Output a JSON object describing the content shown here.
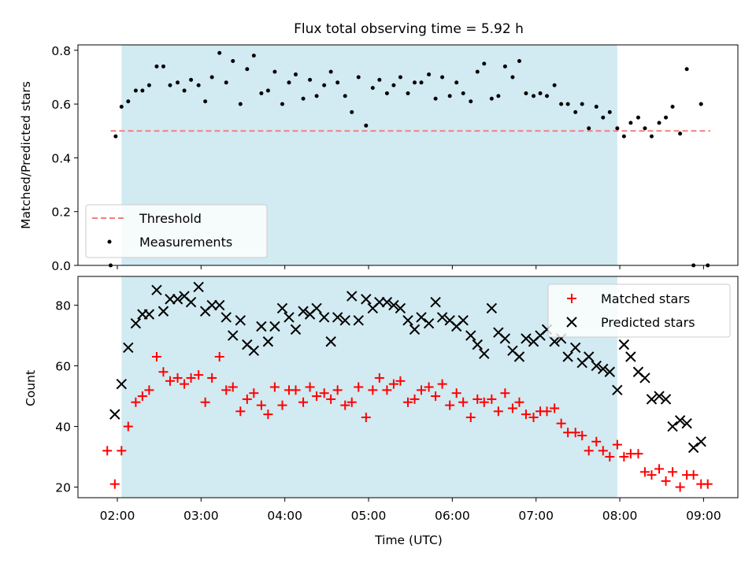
{
  "title": "Flux total observing time = 5.92 h",
  "colors": {
    "shade": "#add8e6",
    "threshold": "#f08080",
    "measurement": "#000000",
    "matched": "#ff0000",
    "predicted": "#000000"
  },
  "chart_data": [
    {
      "type": "scatter",
      "ylabel": "Matched/Predicted stars",
      "xlabel": "",
      "xlim": [
        1.53,
        9.41
      ],
      "ylim": [
        0,
        0.82
      ],
      "yticks": [
        0,
        0.2,
        0.4,
        0.6,
        0.8
      ],
      "ytick_labels": [
        "0.0",
        "0.2",
        "0.4",
        "0.6",
        "0.8"
      ],
      "shaded_region": {
        "x0": 2.05,
        "x1": 7.97
      },
      "legend_position": "lower-left",
      "threshold": {
        "name": "Threshold",
        "y": 0.5,
        "x_range": [
          1.92,
          9.08
        ]
      },
      "series": [
        {
          "name": "Measurements",
          "x": [
            1.92,
            1.98,
            2.05,
            2.13,
            2.22,
            2.3,
            2.38,
            2.47,
            2.55,
            2.63,
            2.72,
            2.8,
            2.88,
            2.97,
            3.05,
            3.13,
            3.22,
            3.3,
            3.38,
            3.47,
            3.55,
            3.63,
            3.72,
            3.8,
            3.88,
            3.97,
            4.05,
            4.13,
            4.22,
            4.3,
            4.38,
            4.47,
            4.55,
            4.63,
            4.72,
            4.8,
            4.88,
            4.97,
            5.05,
            5.13,
            5.22,
            5.3,
            5.38,
            5.47,
            5.55,
            5.63,
            5.72,
            5.8,
            5.88,
            5.97,
            6.05,
            6.13,
            6.22,
            6.3,
            6.38,
            6.47,
            6.55,
            6.63,
            6.72,
            6.8,
            6.88,
            6.97,
            7.05,
            7.13,
            7.22,
            7.3,
            7.38,
            7.47,
            7.55,
            7.63,
            7.72,
            7.8,
            7.88,
            7.97,
            8.05,
            8.13,
            8.22,
            8.3,
            8.38,
            8.47,
            8.55,
            8.63,
            8.72,
            8.8,
            8.88,
            8.97,
            9.05
          ],
          "y": [
            0.0,
            0.48,
            0.59,
            0.61,
            0.65,
            0.65,
            0.67,
            0.74,
            0.74,
            0.67,
            0.68,
            0.65,
            0.69,
            0.67,
            0.61,
            0.7,
            0.79,
            0.68,
            0.76,
            0.6,
            0.73,
            0.78,
            0.64,
            0.65,
            0.72,
            0.6,
            0.68,
            0.71,
            0.62,
            0.69,
            0.63,
            0.67,
            0.72,
            0.68,
            0.63,
            0.57,
            0.7,
            0.52,
            0.66,
            0.69,
            0.64,
            0.67,
            0.7,
            0.64,
            0.68,
            0.68,
            0.71,
            0.62,
            0.7,
            0.63,
            0.68,
            0.64,
            0.61,
            0.72,
            0.75,
            0.62,
            0.63,
            0.74,
            0.7,
            0.76,
            0.64,
            0.63,
            0.64,
            0.63,
            0.67,
            0.6,
            0.6,
            0.57,
            0.6,
            0.51,
            0.59,
            0.55,
            0.57,
            0.51,
            0.48,
            0.53,
            0.55,
            0.51,
            0.48,
            0.53,
            0.55,
            0.59,
            0.49,
            0.73,
            0.0,
            0.6,
            0.0
          ]
        }
      ]
    },
    {
      "type": "scatter",
      "ylabel": "Count",
      "xlabel": "Time (UTC)",
      "xlim": [
        1.53,
        9.41
      ],
      "ylim": [
        16.5,
        89.5
      ],
      "yticks": [
        20,
        40,
        60,
        80
      ],
      "ytick_labels": [
        "20",
        "40",
        "60",
        "80"
      ],
      "xticks": [
        2,
        3,
        4,
        5,
        6,
        7,
        8,
        9
      ],
      "xtick_labels": [
        "02:00",
        "03:00",
        "04:00",
        "05:00",
        "06:00",
        "07:00",
        "08:00",
        "09:00"
      ],
      "shaded_region": {
        "x0": 2.05,
        "x1": 7.97
      },
      "legend_position": "top-right",
      "series": [
        {
          "name": "Matched stars",
          "x": [
            1.88,
            1.97,
            2.05,
            2.13,
            2.22,
            2.3,
            2.38,
            2.47,
            2.55,
            2.63,
            2.72,
            2.8,
            2.88,
            2.97,
            3.05,
            3.13,
            3.22,
            3.3,
            3.38,
            3.47,
            3.55,
            3.63,
            3.72,
            3.8,
            3.88,
            3.97,
            4.05,
            4.13,
            4.22,
            4.3,
            4.38,
            4.47,
            4.55,
            4.63,
            4.72,
            4.8,
            4.88,
            4.97,
            5.05,
            5.13,
            5.22,
            5.3,
            5.38,
            5.47,
            5.55,
            5.63,
            5.72,
            5.8,
            5.88,
            5.97,
            6.05,
            6.13,
            6.22,
            6.3,
            6.38,
            6.47,
            6.55,
            6.63,
            6.72,
            6.8,
            6.88,
            6.97,
            7.05,
            7.13,
            7.22,
            7.3,
            7.38,
            7.47,
            7.55,
            7.63,
            7.72,
            7.8,
            7.88,
            7.97,
            8.05,
            8.13,
            8.22,
            8.3,
            8.38,
            8.47,
            8.55,
            8.63,
            8.72,
            8.8,
            8.88,
            8.97,
            9.05
          ],
          "y": [
            32,
            21,
            32,
            40,
            48,
            50,
            52,
            63,
            58,
            55,
            56,
            54,
            56,
            57,
            48,
            56,
            63,
            52,
            53,
            45,
            49,
            51,
            47,
            44,
            53,
            47,
            52,
            52,
            48,
            53,
            50,
            51,
            49,
            52,
            47,
            48,
            53,
            43,
            52,
            56,
            52,
            54,
            55,
            48,
            49,
            52,
            53,
            50,
            54,
            47,
            51,
            48,
            43,
            49,
            48,
            49,
            45,
            51,
            46,
            48,
            44,
            43,
            45,
            45,
            46,
            41,
            38,
            38,
            37,
            32,
            35,
            32,
            30,
            34,
            30,
            31,
            31,
            25,
            24,
            26,
            22,
            25,
            20,
            24,
            24,
            21,
            21
          ]
        },
        {
          "name": "Predicted stars",
          "x": [
            1.97,
            2.05,
            2.13,
            2.22,
            2.3,
            2.38,
            2.47,
            2.55,
            2.63,
            2.72,
            2.8,
            2.88,
            2.97,
            3.05,
            3.13,
            3.22,
            3.3,
            3.38,
            3.47,
            3.55,
            3.63,
            3.72,
            3.8,
            3.88,
            3.97,
            4.05,
            4.13,
            4.22,
            4.3,
            4.38,
            4.47,
            4.55,
            4.63,
            4.72,
            4.8,
            4.88,
            4.97,
            5.05,
            5.13,
            5.22,
            5.3,
            5.38,
            5.47,
            5.55,
            5.63,
            5.72,
            5.8,
            5.88,
            5.97,
            6.05,
            6.13,
            6.22,
            6.3,
            6.38,
            6.47,
            6.55,
            6.63,
            6.72,
            6.8,
            6.88,
            6.97,
            7.05,
            7.13,
            7.22,
            7.3,
            7.38,
            7.47,
            7.55,
            7.63,
            7.72,
            7.8,
            7.88,
            7.97,
            8.05,
            8.13,
            8.22,
            8.3,
            8.38,
            8.47,
            8.55,
            8.63,
            8.72,
            8.8,
            8.88,
            8.97
          ],
          "y": [
            44,
            54,
            66,
            74,
            77,
            77,
            85,
            78,
            82,
            82,
            83,
            81,
            86,
            78,
            80,
            80,
            76,
            70,
            75,
            67,
            65,
            73,
            68,
            73,
            79,
            76,
            72,
            78,
            77,
            79,
            76,
            68,
            76,
            75,
            83,
            75,
            82,
            79,
            81,
            81,
            80,
            79,
            75,
            72,
            76,
            74,
            81,
            76,
            75,
            73,
            75,
            70,
            67,
            64,
            79,
            71,
            69,
            65,
            63,
            69,
            68,
            70,
            72,
            68,
            69,
            63,
            66,
            61,
            63,
            60,
            59,
            58,
            52,
            67,
            63,
            58,
            56,
            49,
            50,
            49,
            40,
            42,
            41,
            33,
            35
          ]
        }
      ]
    }
  ]
}
